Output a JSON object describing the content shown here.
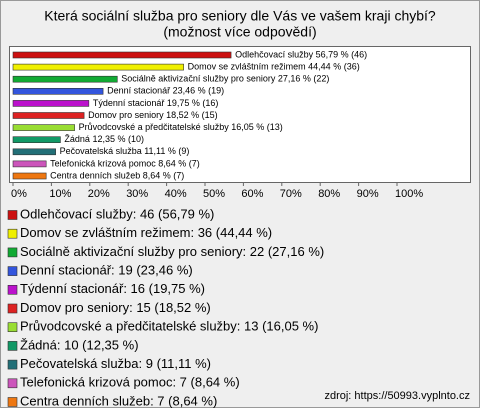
{
  "chart_data": {
    "type": "bar",
    "orientation": "horizontal",
    "title": "Která sociální služba pro seniory dle Vás ve vašem kraji chybí?",
    "subtitle": "(možnost více odpovědí)",
    "categories": [
      "Odlehčovací služby",
      "Domov se zvláštním režimem",
      "Sociálně aktivizační služby pro seniory",
      "Denní stacionář",
      "Týdenní stacionář",
      "Domov pro seniory",
      "Průvodcovské a předčitatelské služby",
      "Žádná",
      "Pečovatelská služba",
      "Telefonická krizová pomoc",
      "Centra denních služeb"
    ],
    "values": [
      56.79,
      44.44,
      27.16,
      23.46,
      19.75,
      18.52,
      16.05,
      12.35,
      11.11,
      8.64,
      8.64
    ],
    "value_labels": [
      "Odlehčovací služby 56,79 % (46)",
      "Domov se zvláštním režimem 44,44 % (36)",
      "Sociálně aktivizační služby pro seniory 27,16 % (22)",
      "Denní stacionář 23,46 % (19)",
      "Týdenní stacionář 19,75 % (16)",
      "Domov pro seniory 18,52 % (15)",
      "Průvodcovské a předčitatelské služby 16,05 % (13)",
      "Žádná 12,35 % (10)",
      "Pečovatelská služba 11,11 % (9)",
      "Telefonická krizová pomoc 8,64 % (7)",
      "Centra denních služeb 8,64 % (7)"
    ],
    "legend_labels": [
      "Odlehčovací služby: 46 (56,79 %)",
      "Domov se zvláštním režimem: 36 (44,44 %)",
      "Sociálně aktivizační služby pro seniory: 22 (27,16 %)",
      "Denní stacionář: 19 (23,46 %)",
      "Týdenní stacionář: 16 (19,75 %)",
      "Domov pro seniory: 15 (18,52 %)",
      "Průvodcovské a předčitatelské služby: 13 (16,05 %)",
      "Žádná: 10 (12,35 %)",
      "Pečovatelská služba: 9 (11,11 %)",
      "Telefonická krizová pomoc: 7 (8,64 %)",
      "Centra denních služeb: 7 (8,64 %)"
    ],
    "colors": [
      "#cc1111",
      "#f0f000",
      "#11aa33",
      "#3355dd",
      "#bb11cc",
      "#dd2222",
      "#99dd33",
      "#119966",
      "#226f77",
      "#cc55bb",
      "#ee7711"
    ],
    "xlim": [
      0,
      100
    ],
    "xticks": [
      {
        "value": 0,
        "label": "0%"
      },
      {
        "value": 10,
        "label": "10%"
      },
      {
        "value": 20,
        "label": "20%"
      },
      {
        "value": 30,
        "label": "30%"
      },
      {
        "value": 40,
        "label": "40%"
      },
      {
        "value": 50,
        "label": "50%"
      },
      {
        "value": 60,
        "label": "60%"
      },
      {
        "value": 70,
        "label": "70%"
      },
      {
        "value": 80,
        "label": "80%"
      },
      {
        "value": 90,
        "label": "90%"
      },
      {
        "value": 100,
        "label": "100%"
      }
    ],
    "source": "zdroj: https://50993.vyplnto.cz"
  }
}
